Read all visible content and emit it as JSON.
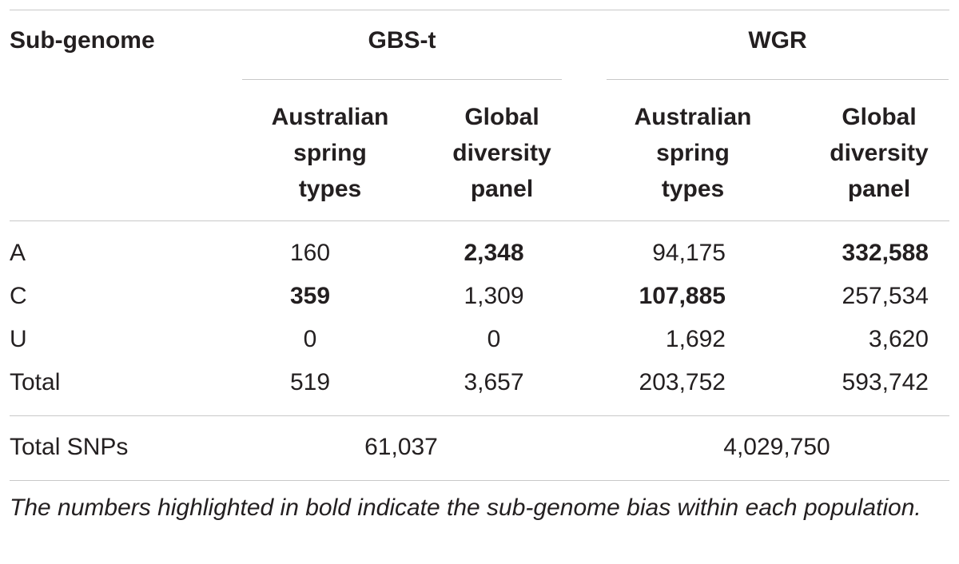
{
  "table": {
    "header": {
      "first_col": "Sub-genome",
      "group_gbs": "GBS-t",
      "group_wgr": "WGR",
      "sub_cols": [
        [
          "Australian",
          "spring",
          "types"
        ],
        [
          "Global",
          "diversity",
          "panel"
        ],
        [
          "Australian",
          "spring",
          "types"
        ],
        [
          "Global",
          "diversity",
          "panel"
        ]
      ]
    },
    "rows": [
      {
        "label": "A",
        "values": [
          "160",
          "2,348",
          "94,175",
          "332,588"
        ],
        "bold": [
          false,
          true,
          false,
          true
        ]
      },
      {
        "label": "C",
        "values": [
          "359",
          "1,309",
          "107,885",
          "257,534"
        ],
        "bold": [
          true,
          false,
          true,
          false
        ]
      },
      {
        "label": "U",
        "values": [
          "0",
          "0",
          "1,692",
          "3,620"
        ],
        "bold": [
          false,
          false,
          false,
          false
        ]
      },
      {
        "label": "Total",
        "values": [
          "519",
          "3,657",
          "203,752",
          "593,742"
        ],
        "bold": [
          false,
          false,
          false,
          false
        ]
      }
    ],
    "total_snps": {
      "label": "Total SNPs",
      "gbs": "61,037",
      "wgr": "4,029,750"
    }
  },
  "footnote": "The numbers highlighted in bold indicate the sub-genome bias within each population."
}
